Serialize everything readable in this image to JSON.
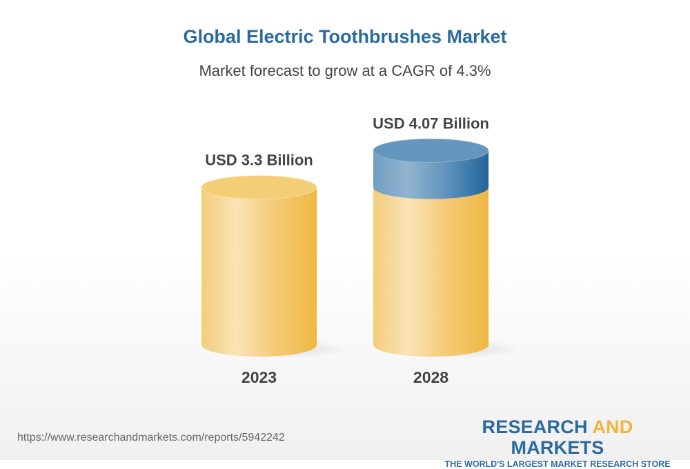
{
  "title": "Global Electric Toothbrushes Market",
  "subtitle": "Market forecast to grow at a CAGR of 4.3%",
  "chart_data": {
    "type": "bar",
    "style": "3d-cylinder",
    "categories": [
      "2023",
      "2028"
    ],
    "values": [
      3.3,
      4.07
    ],
    "data_labels": [
      "USD 3.3 Billion",
      "USD 4.07 Billion"
    ],
    "unit": "USD Billion",
    "colors": {
      "base": "#f0b940",
      "growth": "#2a6aa0"
    },
    "grid": false
  },
  "footer": {
    "url": "https://www.researchandmarkets.com/reports/5942242",
    "logo_part1": "RESEARCH ",
    "logo_part2": "AND",
    "logo_part3": " MARKETS",
    "tagline": "THE WORLD'S LARGEST MARKET RESEARCH STORE"
  }
}
